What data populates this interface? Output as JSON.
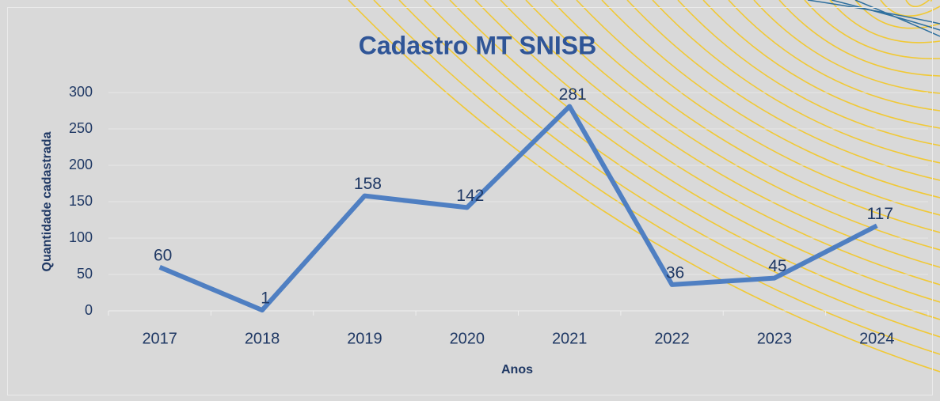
{
  "chart_data": {
    "type": "line",
    "title": "Cadastro MT SNISB",
    "x_label": "Anos",
    "y_label": "Quantidade cadastrada",
    "categories": [
      "2017",
      "2018",
      "2019",
      "2020",
      "2021",
      "2022",
      "2023",
      "2024"
    ],
    "values": [
      60,
      1,
      158,
      142,
      281,
      36,
      45,
      117
    ],
    "color": "#4f7fc2",
    "ylim": [
      0,
      300
    ],
    "yticks": [
      0,
      50,
      100,
      150,
      200,
      250,
      300
    ],
    "grid": true
  }
}
